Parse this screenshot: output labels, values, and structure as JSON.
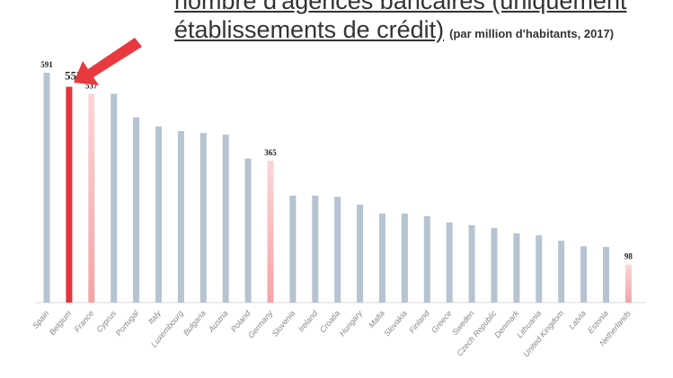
{
  "chart_data": {
    "type": "bar",
    "title": "nombre d'agences bancaires (uniquement établissements de crédit)",
    "title_line1": "nombre d'agences bancaires (uniquement",
    "title_line2": "établissements de crédit)",
    "subtitle": "(par million d'habitants, 2017)",
    "categories": [
      "Spain",
      "Belgium",
      "France",
      "Cyprus",
      "Portugal",
      "Italy",
      "Luxembourg",
      "Bulgaria",
      "Austria",
      "Poland",
      "Germany",
      "Slovenia",
      "Ireland",
      "Croatia",
      "Hungary",
      "Malta",
      "Slovakia",
      "Finland",
      "Greece",
      "Sweden",
      "Czech Republic",
      "Denmark",
      "Lithuania",
      "United Kingdom",
      "Latvia",
      "Estonia",
      "Netherlands"
    ],
    "values": [
      591,
      555,
      537,
      537,
      476,
      453,
      441,
      436,
      432,
      370,
      365,
      275,
      275,
      272,
      252,
      229,
      229,
      222,
      206,
      199,
      192,
      178,
      173,
      159,
      145,
      143,
      98
    ],
    "data_labels": {
      "Spain": "591",
      "Belgium": "555",
      "France": "537",
      "Germany": "365",
      "Netherlands": "98"
    },
    "highlight": {
      "Belgium": "strong",
      "France": "light",
      "Germany": "light",
      "Netherlands": "light"
    },
    "ylim": [
      0,
      600
    ],
    "grid": false,
    "colors": {
      "default": "#b6c3d1",
      "strong": "#e5343c",
      "light": "#f4a3a6",
      "arrow": "#e8393f"
    },
    "annotation": "arrow pointing to Belgium"
  }
}
